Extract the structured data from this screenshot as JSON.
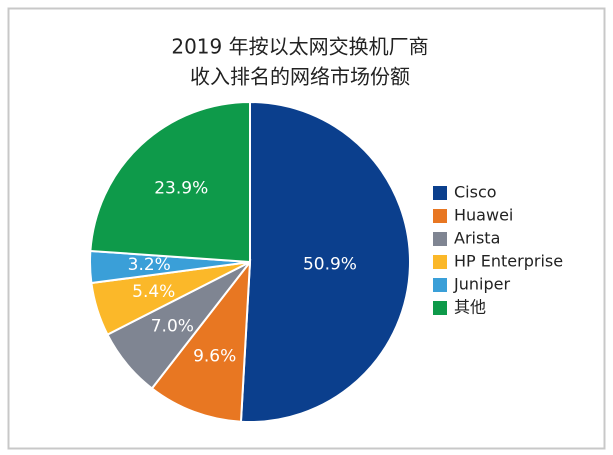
{
  "chart_data": {
    "type": "pie",
    "title": [
      "2019 年按以太网交换机厂商",
      "收入排名的网络市场份额"
    ],
    "categories": [
      "Cisco",
      "Huawei",
      "Arista",
      "HP Enterprise",
      "Juniper",
      "其他"
    ],
    "values": [
      50.9,
      9.6,
      7.0,
      5.4,
      3.2,
      23.9
    ],
    "value_labels": [
      "50.9%",
      "9.6%",
      "7.0%",
      "5.4%",
      "3.2%",
      "23.9%"
    ],
    "colors": [
      "#0b3f8d",
      "#e87722",
      "#7f8592",
      "#fbb829",
      "#3a9fd8",
      "#0e9a4a"
    ],
    "legend": "right"
  }
}
